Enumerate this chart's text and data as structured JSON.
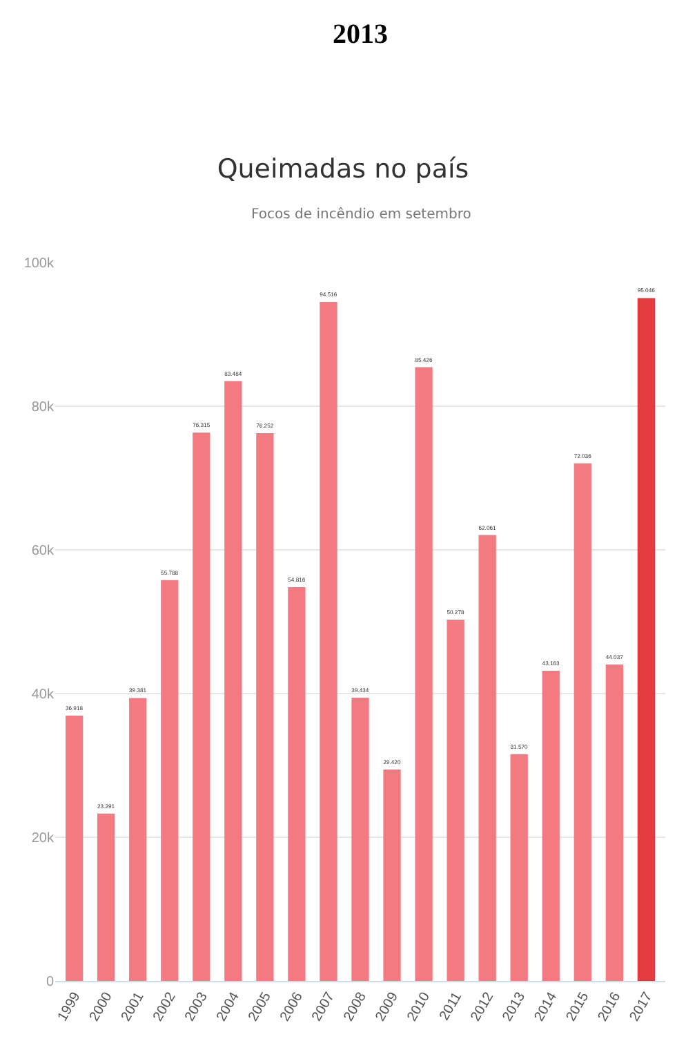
{
  "chart_data": {
    "type": "bar",
    "title": "Queimadas no país",
    "subtitle": "Focos de incêndio em setembro",
    "annotations": [
      "2013"
    ],
    "categories": [
      "1999",
      "2000",
      "2001",
      "2002",
      "2003",
      "2004",
      "2005",
      "2006",
      "2007",
      "2008",
      "2009",
      "2010",
      "2011",
      "2012",
      "2013",
      "2014",
      "2015",
      "2016",
      "2017"
    ],
    "values": [
      36918,
      23291,
      39381,
      55788,
      76315,
      83484,
      76252,
      54816,
      94516,
      39434,
      29420,
      85426,
      50278,
      62061,
      31570,
      43163,
      72036,
      44037,
      95046
    ],
    "value_labels": [
      "36.918",
      "23.291",
      "39.381",
      "55.788",
      "76.315",
      "83.484",
      "76.252",
      "54.816",
      "94.516",
      "39.434",
      "29.420",
      "85.426",
      "50.278",
      "62.061",
      "31.570",
      "43.163",
      "72.036",
      "44.037",
      "95.046"
    ],
    "colors": [
      "#f47a82",
      "#f47a82",
      "#f47a82",
      "#f47a82",
      "#f47a82",
      "#f47a82",
      "#f47a82",
      "#f47a82",
      "#f47a82",
      "#f47a82",
      "#f47a82",
      "#f47a82",
      "#f47a82",
      "#f47a82",
      "#f47a82",
      "#f47a82",
      "#f47a82",
      "#f47a82",
      "#e53a3e"
    ],
    "ylim": [
      0,
      100000
    ],
    "yticks": [
      {
        "value": 0,
        "label": "0"
      },
      {
        "value": 20000,
        "label": "20k"
      },
      {
        "value": 40000,
        "label": "40k"
      },
      {
        "value": 60000,
        "label": "60k"
      },
      {
        "value": 80000,
        "label": "80k"
      },
      {
        "value": 100000,
        "label": "100k"
      }
    ],
    "grid": "y"
  }
}
